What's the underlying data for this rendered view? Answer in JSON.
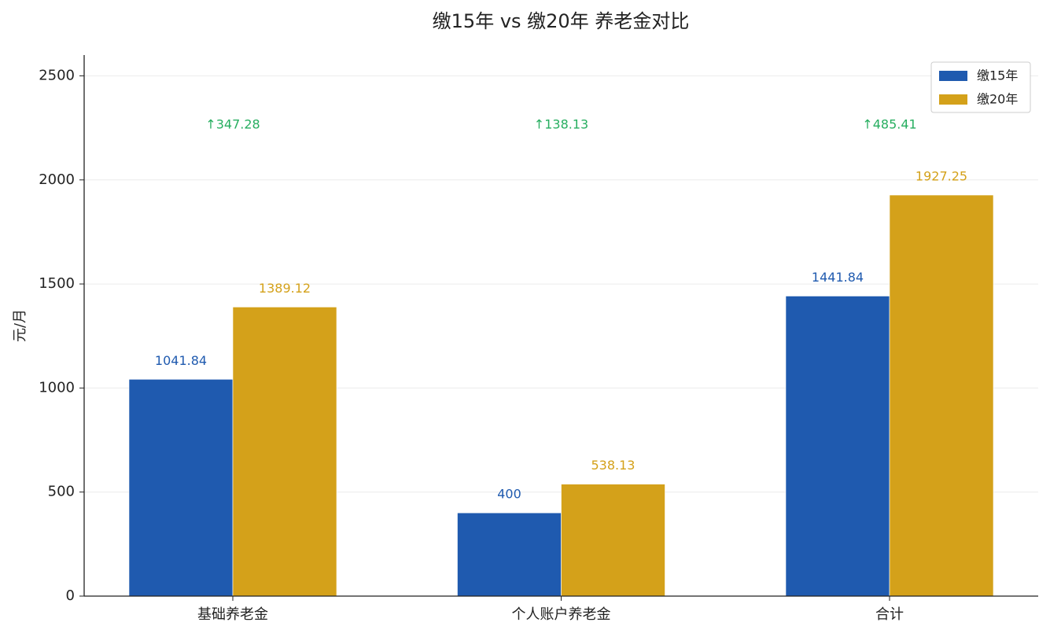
{
  "chart_data": {
    "type": "bar",
    "title": "缴15年 vs 缴20年 养老金对比",
    "y_label": "元/月",
    "categories": [
      "基础养老金",
      "个人账户养老金",
      "合计"
    ],
    "series": [
      {
        "name": "缴15年",
        "color": "#1f5aaf",
        "values": [
          1041.84,
          400,
          1441.84
        ]
      },
      {
        "name": "缴20年",
        "color": "#d4a11a",
        "values": [
          1389.12,
          538.13,
          1927.25
        ]
      }
    ],
    "annotations": [
      "↑347.28",
      "↑138.13",
      "↑485.41"
    ],
    "annotation_color": "#27ae60",
    "ylim": [
      0,
      2600
    ],
    "yticks": [
      0,
      500,
      1000,
      1500,
      2000,
      2500
    ],
    "grid": true,
    "legend": "upper right"
  }
}
